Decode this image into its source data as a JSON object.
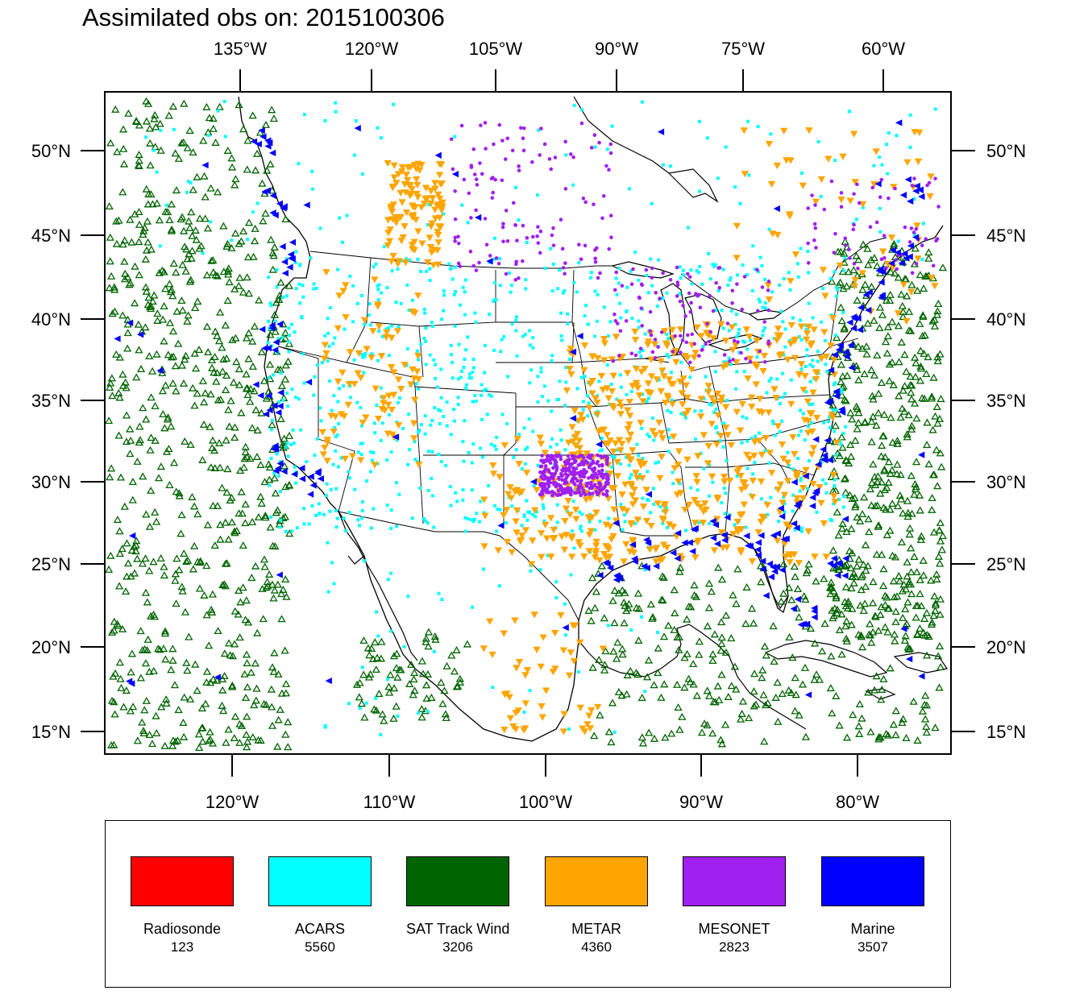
{
  "title": "Assimilated obs on: 2015100306",
  "map": {
    "top_lon_ticks": [
      "135°W",
      "120°W",
      "105°W",
      "90°W",
      "75°W",
      "60°W"
    ],
    "bottom_lon_ticks": [
      "120°W",
      "110°W",
      "100°W",
      "90°W",
      "80°W"
    ],
    "lat_ticks": [
      "50°N",
      "45°N",
      "40°N",
      "35°N",
      "30°N",
      "25°N",
      "20°N",
      "15°N"
    ],
    "bottom_lon_values": [
      -120,
      -110,
      -100,
      -90,
      -80
    ],
    "lat_values": [
      50,
      45,
      40,
      35,
      30,
      25,
      20,
      15
    ],
    "lon_range": [
      -130,
      -76
    ],
    "lat_range": [
      14,
      53
    ]
  },
  "legend": [
    {
      "name": "Radiosonde",
      "count": "123",
      "color": "#ff0000",
      "marker": "circle"
    },
    {
      "name": "ACARS",
      "count": "5560",
      "color": "#00ffff",
      "marker": "square"
    },
    {
      "name": "SAT Track Wind",
      "count": "3206",
      "color": "#006400",
      "marker": "triangle-up"
    },
    {
      "name": "METAR",
      "count": "4360",
      "color": "#ffa500",
      "marker": "triangle-down"
    },
    {
      "name": "MESONET",
      "count": "2823",
      "color": "#a020f0",
      "marker": "circle"
    },
    {
      "name": "Marine",
      "count": "3507",
      "color": "#0000ff",
      "marker": "triangle-left"
    }
  ]
}
